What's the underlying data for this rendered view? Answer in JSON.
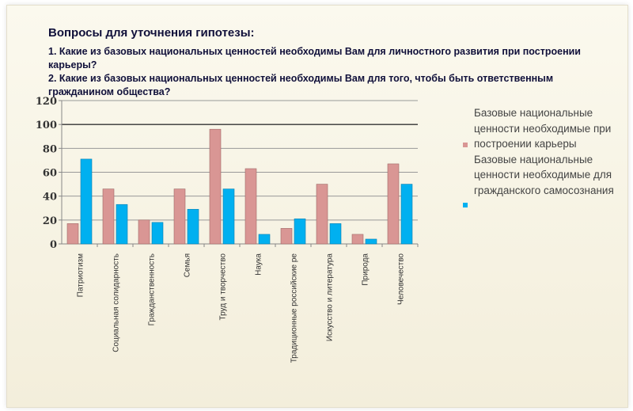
{
  "title": {
    "heading": "Вопросы для уточнения гипотезы:",
    "q1": "1. Какие из базовых национальных ценностей необходимы Вам для личностного развития при построении карьеры?",
    "q2": "2. Какие из базовых национальных ценностей необходимы Вам для того, чтобы быть ответственным гражданином общества?"
  },
  "chart_data": {
    "type": "bar",
    "title": "",
    "xlabel": "",
    "ylabel": "",
    "ylim": [
      0,
      120
    ],
    "yticks": [
      "0",
      "20",
      "40",
      "60",
      "80",
      "100",
      "120"
    ],
    "grid": true,
    "legend_placement": "right",
    "categories": [
      "Патриотизм",
      "Социальная солидарность",
      "Гражданственность",
      "Семья",
      "Труд и творчество",
      "Наука",
      "Традиционные российские ре",
      "Искусство и литература",
      "Природа",
      "Человечество"
    ],
    "series": [
      {
        "name": "Базовые национальные ценности необходимые при построении карьеры",
        "color": "#d99694",
        "values": [
          17,
          46,
          20,
          46,
          96,
          63,
          13,
          50,
          8,
          67
        ]
      },
      {
        "name": "Базовые национальные ценности необходимые для гражданского самосознания",
        "color": "#00b0f0",
        "values": [
          71,
          33,
          18,
          29,
          46,
          8,
          21,
          17,
          4,
          50
        ]
      }
    ]
  }
}
